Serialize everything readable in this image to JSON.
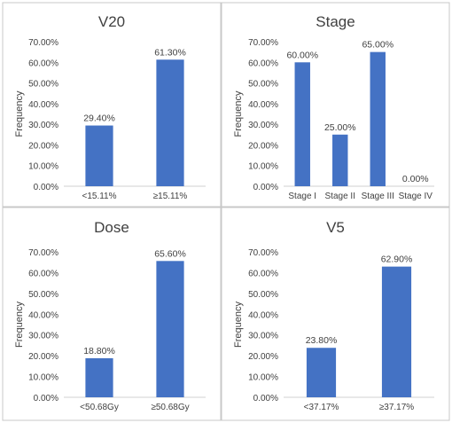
{
  "chart_data": [
    {
      "type": "bar",
      "title": "V20",
      "ylabel": "Frequency",
      "categories": [
        "<15.11%",
        "≥15.11%"
      ],
      "values": [
        29.4,
        61.3
      ],
      "value_labels": [
        "29.40%",
        "61.30%"
      ],
      "ylim": [
        0,
        70
      ],
      "yticks": [
        "0.00%",
        "10.00%",
        "20.00%",
        "30.00%",
        "40.00%",
        "50.00%",
        "60.00%",
        "70.00%"
      ],
      "grid": false,
      "legend": "none"
    },
    {
      "type": "bar",
      "title": "Stage",
      "ylabel": "Frequency",
      "categories": [
        "Stage I",
        "Stage II",
        "Stage III",
        "Stage IV"
      ],
      "values": [
        60.0,
        25.0,
        65.0,
        0.0
      ],
      "value_labels": [
        "60.00%",
        "25.00%",
        "65.00%",
        "0.00%"
      ],
      "ylim": [
        0,
        70
      ],
      "yticks": [
        "0.00%",
        "10.00%",
        "20.00%",
        "30.00%",
        "40.00%",
        "50.00%",
        "60.00%",
        "70.00%"
      ],
      "grid": false,
      "legend": "none"
    },
    {
      "type": "bar",
      "title": "Dose",
      "ylabel": "Frequency",
      "categories": [
        "<50.68Gy",
        "≥50.68Gy"
      ],
      "values": [
        18.8,
        65.6
      ],
      "value_labels": [
        "18.80%",
        "65.60%"
      ],
      "ylim": [
        0,
        70
      ],
      "yticks": [
        "0.00%",
        "10.00%",
        "20.00%",
        "30.00%",
        "40.00%",
        "50.00%",
        "60.00%",
        "70.00%"
      ],
      "grid": false,
      "legend": "none"
    },
    {
      "type": "bar",
      "title": "V5",
      "ylabel": "Frequency",
      "categories": [
        "<37.17%",
        "≥37.17%"
      ],
      "values": [
        23.8,
        62.9
      ],
      "value_labels": [
        "23.80%",
        "62.90%"
      ],
      "ylim": [
        0,
        70
      ],
      "yticks": [
        "0.00%",
        "10.00%",
        "20.00%",
        "30.00%",
        "40.00%",
        "50.00%",
        "60.00%",
        "70.00%"
      ],
      "grid": false,
      "legend": "none"
    }
  ],
  "colors": {
    "bar": "#4472c4",
    "panel_border": "#c8c8c8",
    "text": "#404040",
    "axis": "#d0d0d0"
  }
}
